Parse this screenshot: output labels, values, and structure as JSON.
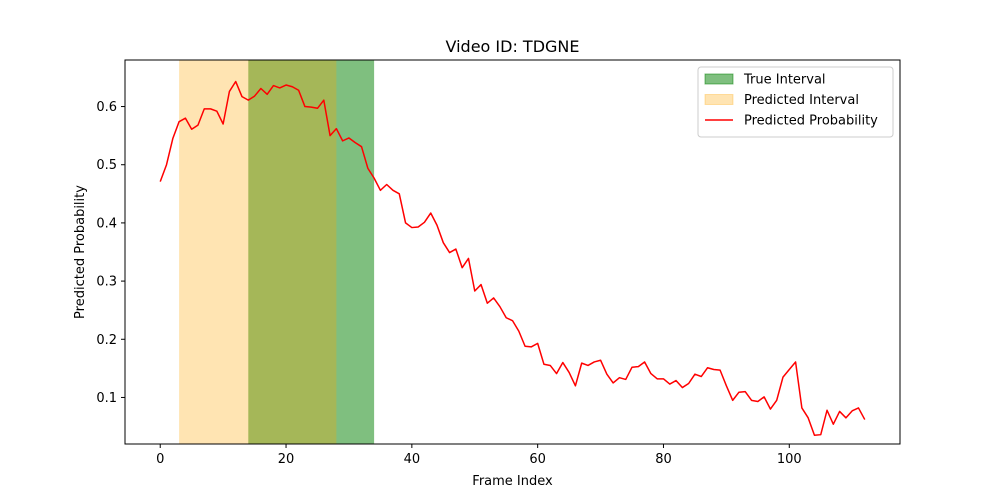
{
  "chart_data": {
    "type": "line",
    "title": "Video ID: TDGNE",
    "xlabel": "Frame Index",
    "ylabel": "Predicted Probability",
    "xlim": [
      -5.6,
      117.6
    ],
    "ylim": [
      0.02,
      0.68
    ],
    "x_ticks": [
      0,
      20,
      40,
      60,
      80,
      100
    ],
    "y_ticks": [
      0.1,
      0.2,
      0.3,
      0.4,
      0.5,
      0.6
    ],
    "x_tick_labels": [
      "0",
      "20",
      "40",
      "60",
      "80",
      "100"
    ],
    "y_tick_labels": [
      "0.1",
      "0.2",
      "0.3",
      "0.4",
      "0.5",
      "0.6"
    ],
    "grid": false,
    "legend_position": "top-right",
    "intervals": [
      {
        "name": "True Interval",
        "start": 14,
        "end": 34,
        "color": "#008000",
        "opacity": 0.5
      },
      {
        "name": "Predicted Interval",
        "start": 3,
        "end": 28,
        "color": "#FFA500",
        "opacity": 0.3
      }
    ],
    "series": [
      {
        "name": "Predicted Probability",
        "color": "#ff0000",
        "x": [
          0,
          1,
          2,
          3,
          4,
          5,
          6,
          7,
          8,
          9,
          10,
          11,
          12,
          13,
          14,
          15,
          16,
          17,
          18,
          19,
          20,
          21,
          22,
          23,
          24,
          25,
          26,
          27,
          28,
          29,
          30,
          31,
          32,
          33,
          34,
          35,
          36,
          37,
          38,
          39,
          40,
          41,
          42,
          43,
          44,
          45,
          46,
          47,
          48,
          49,
          50,
          51,
          52,
          53,
          54,
          55,
          56,
          57,
          58,
          59,
          60,
          61,
          62,
          63,
          64,
          65,
          66,
          67,
          68,
          69,
          70,
          71,
          72,
          73,
          74,
          75,
          76,
          77,
          78,
          79,
          80,
          81,
          82,
          83,
          84,
          85,
          86,
          87,
          88,
          89,
          90,
          91,
          92,
          93,
          94,
          95,
          96,
          97,
          98,
          99,
          100,
          101,
          102,
          103,
          104,
          105,
          106,
          107,
          108,
          109,
          110,
          111,
          112
        ],
        "values": [
          0.471,
          0.5,
          0.545,
          0.574,
          0.58,
          0.561,
          0.568,
          0.596,
          0.596,
          0.592,
          0.57,
          0.626,
          0.643,
          0.617,
          0.611,
          0.618,
          0.631,
          0.621,
          0.636,
          0.632,
          0.637,
          0.634,
          0.628,
          0.6,
          0.599,
          0.597,
          0.611,
          0.55,
          0.562,
          0.541,
          0.546,
          0.538,
          0.531,
          0.494,
          0.477,
          0.456,
          0.466,
          0.456,
          0.45,
          0.4,
          0.392,
          0.393,
          0.401,
          0.417,
          0.396,
          0.366,
          0.349,
          0.355,
          0.323,
          0.339,
          0.283,
          0.294,
          0.262,
          0.271,
          0.256,
          0.237,
          0.232,
          0.214,
          0.188,
          0.187,
          0.193,
          0.157,
          0.155,
          0.141,
          0.16,
          0.143,
          0.12,
          0.159,
          0.155,
          0.161,
          0.164,
          0.14,
          0.125,
          0.134,
          0.131,
          0.152,
          0.153,
          0.161,
          0.141,
          0.132,
          0.132,
          0.123,
          0.129,
          0.117,
          0.124,
          0.14,
          0.136,
          0.151,
          0.148,
          0.147,
          0.12,
          0.095,
          0.109,
          0.11,
          0.095,
          0.093,
          0.101,
          0.08,
          0.095,
          0.135,
          0.148,
          0.161,
          0.082,
          0.065,
          0.035,
          0.036,
          0.078,
          0.054,
          0.076,
          0.065,
          0.077,
          0.082,
          0.062
        ]
      }
    ]
  }
}
